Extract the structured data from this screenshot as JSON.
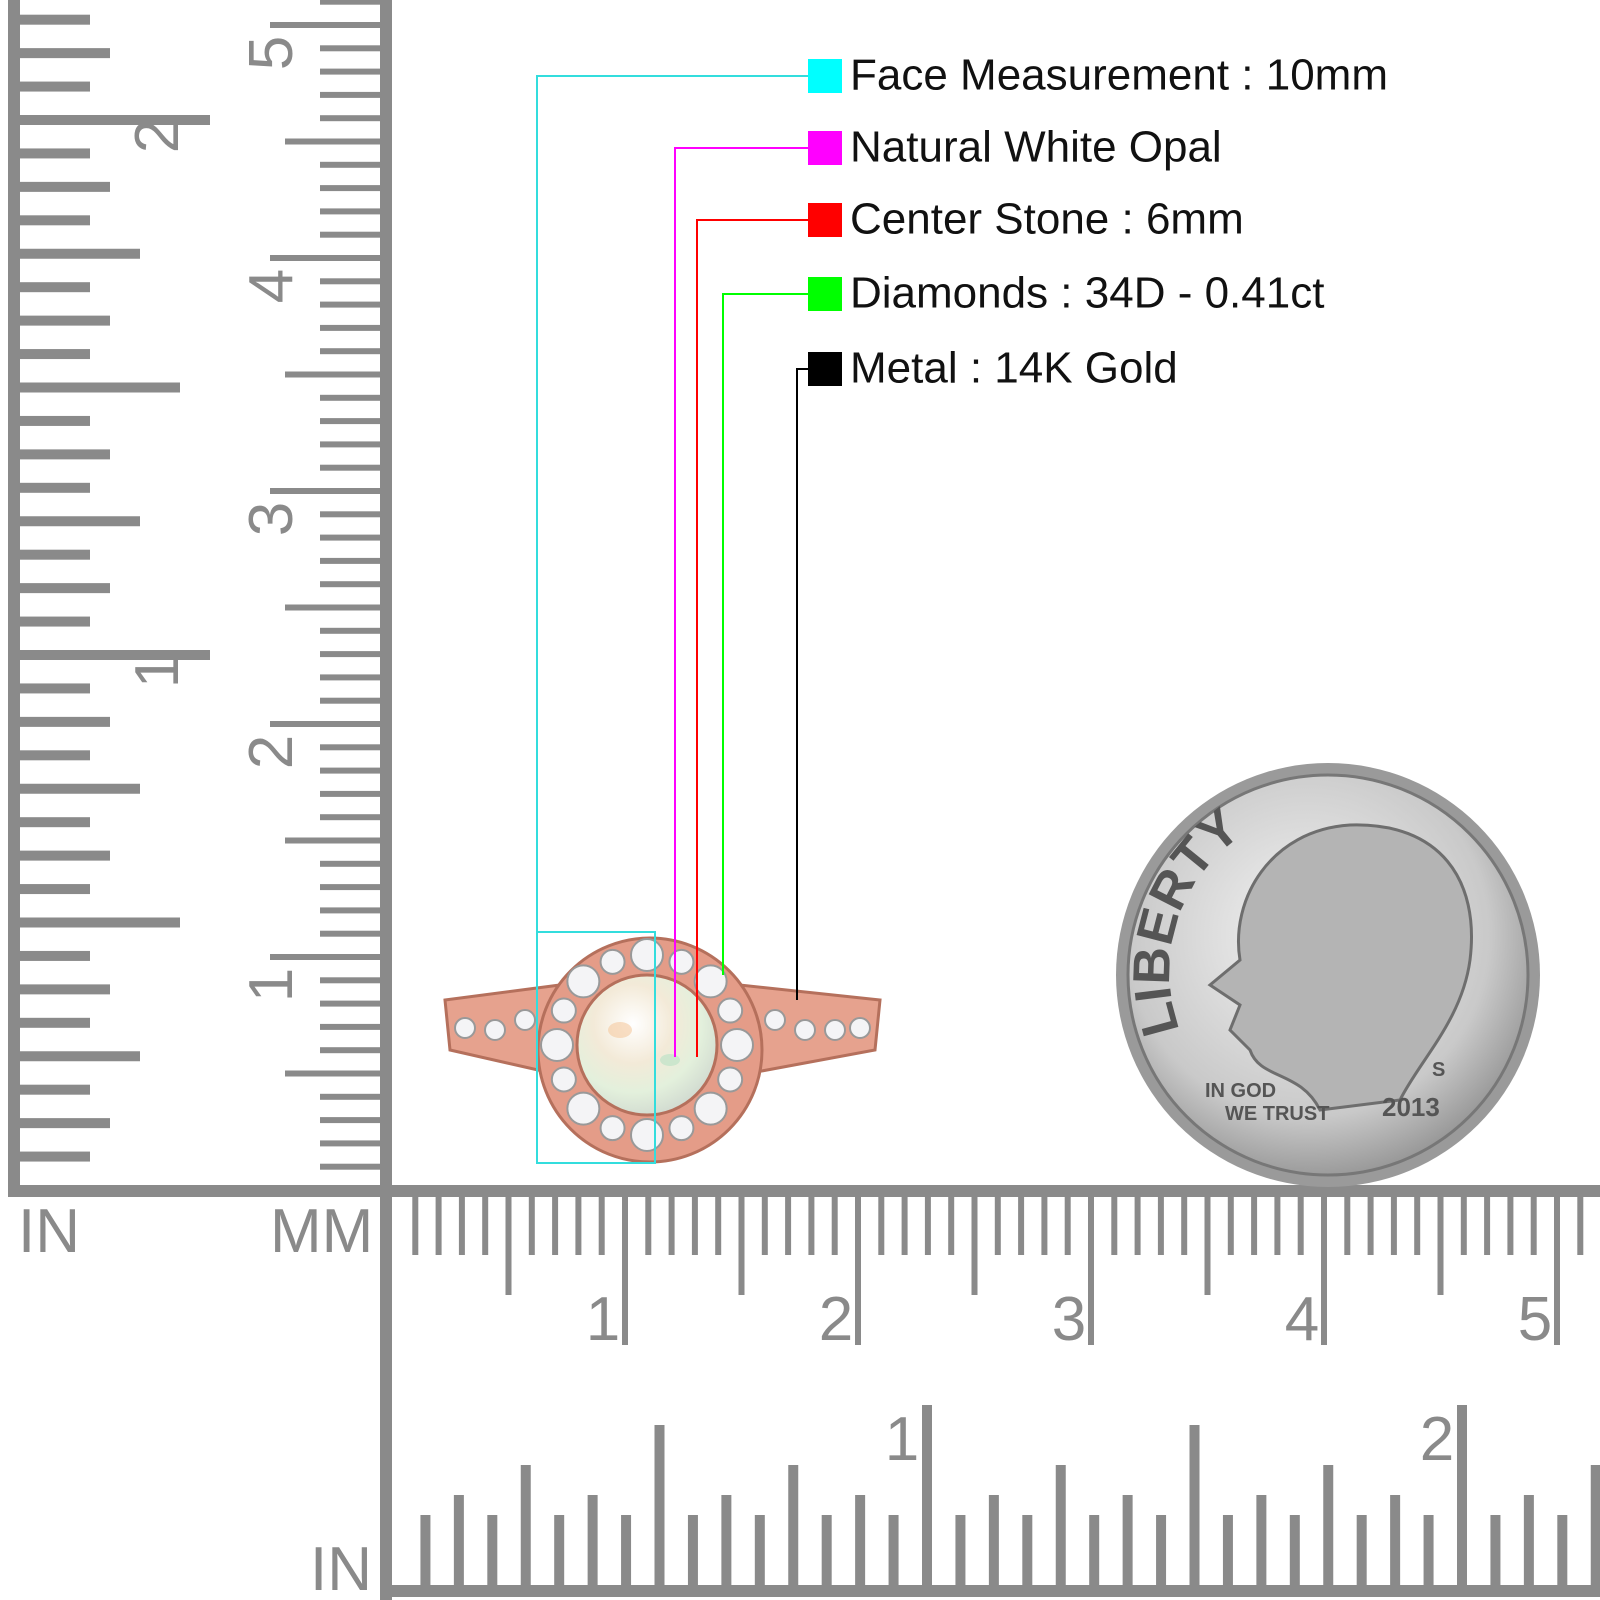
{
  "legend": [
    {
      "label": "Face Measurement : 10mm",
      "color": "#00ffff"
    },
    {
      "label": "Natural White Opal",
      "color": "#ff00ff"
    },
    {
      "label": "Center Stone : 6mm",
      "color": "#ff0000"
    },
    {
      "label": "Diamonds : 34D - 0.41ct",
      "color": "#00ff00"
    },
    {
      "label": "Metal : 14K Gold",
      "color": "#000000"
    }
  ],
  "vertical_ruler": {
    "unit_in": "IN",
    "unit_mm": "MM",
    "mm_labels": [
      "1",
      "2",
      "3",
      "4",
      "5"
    ],
    "in_labels": [
      "1",
      "2"
    ]
  },
  "horizontal_ruler": {
    "unit_in": "IN",
    "mm_labels": [
      "1",
      "2",
      "3",
      "4",
      "5"
    ],
    "in_labels": [
      "1",
      "2"
    ]
  },
  "coin": {
    "legend": "LIBERTY",
    "motto_top": "IN GOD",
    "motto_bottom": "WE TRUST",
    "year": "2013",
    "mint": "S"
  }
}
